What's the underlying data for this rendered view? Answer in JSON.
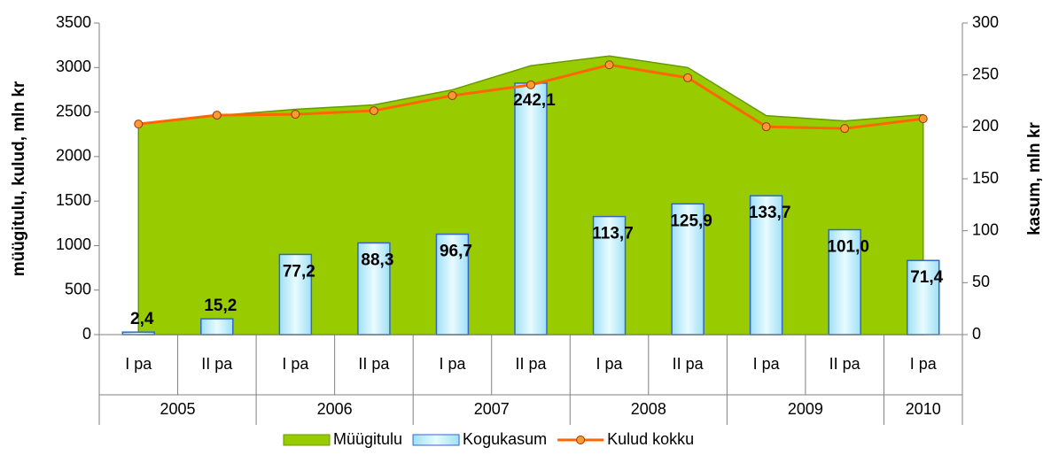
{
  "chart_data": {
    "type": "combo",
    "y_label": "müügitulu, kulud, mln kr",
    "y2_label": "kasum, mln kr",
    "groups": [
      {
        "name": "2005",
        "categories": [
          "I pa",
          "II pa"
        ]
      },
      {
        "name": "2006",
        "categories": [
          "I pa",
          "II pa"
        ]
      },
      {
        "name": "2007",
        "categories": [
          "I pa",
          "II pa"
        ]
      },
      {
        "name": "2008",
        "categories": [
          "I pa",
          "II pa"
        ]
      },
      {
        "name": "2009",
        "categories": [
          "I pa",
          "II pa"
        ]
      },
      {
        "name": "2010",
        "categories": [
          "I pa"
        ]
      }
    ],
    "series": [
      {
        "name": "Müügitulu",
        "type": "area",
        "color": "#99cc00",
        "values": [
          2370,
          2460,
          2530,
          2580,
          2750,
          3020,
          3130,
          3000,
          2460,
          2400,
          2470
        ]
      },
      {
        "name": "Kogukasum",
        "type": "bar",
        "axis": "y2",
        "color": "#ccf2ff",
        "values": [
          2.4,
          15.2,
          77.2,
          88.3,
          96.7,
          242.1,
          113.7,
          125.9,
          133.7,
          101.0,
          71.4
        ],
        "value_labels": [
          "2,4",
          "15,2",
          "77,2",
          "88,3",
          "96,7",
          "242,1",
          "113,7",
          "125,9",
          "133,7",
          "101,0",
          "71,4"
        ]
      },
      {
        "name": "Kulud kokku",
        "type": "line",
        "color": "#ff6600",
        "values": [
          2365,
          2465,
          2475,
          2515,
          2685,
          2805,
          3030,
          2885,
          2335,
          2315,
          2425
        ]
      }
    ],
    "ylim": [
      0,
      3500
    ],
    "yticks": [
      0,
      500,
      1000,
      1500,
      2000,
      2500,
      3000,
      3500
    ],
    "y2lim": [
      0,
      300
    ],
    "y2ticks": [
      0,
      50,
      100,
      150,
      200,
      250,
      300
    ],
    "legend": "bottom"
  }
}
